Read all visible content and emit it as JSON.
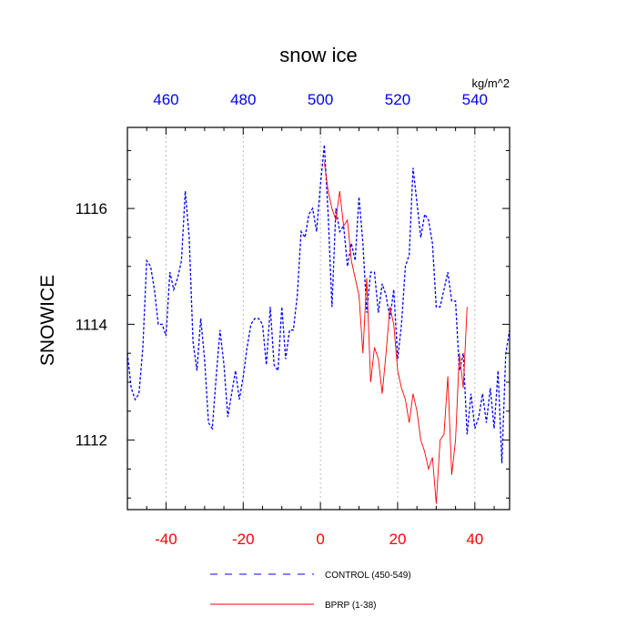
{
  "chart_data": {
    "type": "line",
    "title": "snow ice",
    "units": "kg/m^2",
    "ylabel": "SNOWICE",
    "xlim": [
      -50,
      49
    ],
    "top_xlim": [
      450,
      549
    ],
    "ylim": [
      1110.8,
      1117.4
    ],
    "x_ticks": [
      -40,
      -20,
      0,
      20,
      40
    ],
    "x_tick_labels": [
      "-40",
      "-20",
      "0",
      "20",
      "40"
    ],
    "top_ticks": [
      460,
      480,
      500,
      520,
      540
    ],
    "top_tick_labels": [
      "460",
      "480",
      "500",
      "520",
      "540"
    ],
    "y_ticks": [
      1112,
      1114,
      1116
    ],
    "y_tick_labels": [
      "1112",
      "1114",
      "1116"
    ],
    "grid": "vertical dotted at major x ticks",
    "legend_position": "bottom",
    "colors": {
      "control": "#0000ff",
      "bprp": "#ff0000",
      "bottom_ticks": "#ff0000",
      "top_ticks": "#0000ff"
    },
    "series": [
      {
        "name": "CONTROL (450-549)",
        "style": "dashed",
        "x": [
          -50,
          -49,
          -48,
          -47,
          -46,
          -45,
          -44,
          -43,
          -42,
          -41,
          -40,
          -39,
          -38,
          -37,
          -36,
          -35,
          -34,
          -33,
          -32,
          -31,
          -30,
          -29,
          -28,
          -27,
          -26,
          -25,
          -24,
          -23,
          -22,
          -21,
          -20,
          -19,
          -18,
          -17,
          -16,
          -15,
          -14,
          -13,
          -12,
          -11,
          -10,
          -9,
          -8,
          -7,
          -6,
          -5,
          -4,
          -3,
          -2,
          -1,
          0,
          1,
          2,
          3,
          4,
          5,
          6,
          7,
          8,
          9,
          10,
          11,
          12,
          13,
          14,
          15,
          16,
          17,
          18,
          19,
          20,
          21,
          22,
          23,
          24,
          25,
          26,
          27,
          28,
          29,
          30,
          31,
          32,
          33,
          34,
          35,
          36,
          37,
          38,
          39,
          40,
          41,
          42,
          43,
          44,
          45,
          46,
          47,
          48,
          49
        ],
        "values": [
          1113.5,
          1112.9,
          1112.7,
          1112.8,
          1113.6,
          1115.1,
          1115.0,
          1114.6,
          1114.0,
          1114.0,
          1113.8,
          1114.9,
          1114.6,
          1114.8,
          1115.1,
          1116.3,
          1115.5,
          1113.7,
          1113.2,
          1114.1,
          1113.4,
          1112.3,
          1112.2,
          1113.1,
          1113.9,
          1113.3,
          1112.4,
          1112.8,
          1113.2,
          1112.7,
          1113.1,
          1113.6,
          1114.0,
          1114.1,
          1114.1,
          1114.0,
          1113.3,
          1114.3,
          1113.3,
          1113.2,
          1114.3,
          1113.4,
          1113.9,
          1113.9,
          1114.5,
          1115.6,
          1115.5,
          1115.9,
          1116.0,
          1115.6,
          1116.4,
          1117.1,
          1115.9,
          1114.3,
          1116.0,
          1115.6,
          1115.7,
          1115.0,
          1115.4,
          1115.1,
          1116.2,
          1115.4,
          1114.2,
          1114.9,
          1114.9,
          1114.2,
          1114.7,
          1114.5,
          1114.1,
          1114.6,
          1113.4,
          1114.0,
          1115.0,
          1115.2,
          1116.7,
          1116.1,
          1115.5,
          1115.9,
          1115.8,
          1115.4,
          1114.3,
          1114.3,
          1114.6,
          1114.9,
          1114.4,
          1114.4,
          1113.2,
          1113.5,
          1112.1,
          1112.8,
          1112.2,
          1112.4,
          1112.8,
          1112.3,
          1112.9,
          1112.2,
          1113.2,
          1111.6,
          1113.5,
          1113.9
        ]
      },
      {
        "name": "BPRP (1-38)",
        "style": "solid",
        "x": [
          1,
          2,
          3,
          4,
          5,
          6,
          7,
          8,
          9,
          10,
          11,
          12,
          13,
          14,
          15,
          16,
          17,
          18,
          19,
          20,
          21,
          22,
          23,
          24,
          25,
          26,
          27,
          28,
          29,
          30,
          31,
          32,
          33,
          34,
          35,
          36,
          37,
          38
        ],
        "values": [
          1116.8,
          1116.3,
          1116.0,
          1115.8,
          1116.3,
          1115.7,
          1115.8,
          1115.1,
          1114.8,
          1114.5,
          1113.5,
          1114.8,
          1113.0,
          1113.6,
          1113.4,
          1112.8,
          1113.5,
          1114.3,
          1114.0,
          1113.2,
          1112.9,
          1112.7,
          1112.3,
          1112.8,
          1112.5,
          1112.0,
          1111.8,
          1111.5,
          1111.7,
          1110.9,
          1112.0,
          1112.1,
          1113.1,
          1111.4,
          1112.0,
          1113.5,
          1112.9,
          1114.3
        ]
      }
    ]
  }
}
